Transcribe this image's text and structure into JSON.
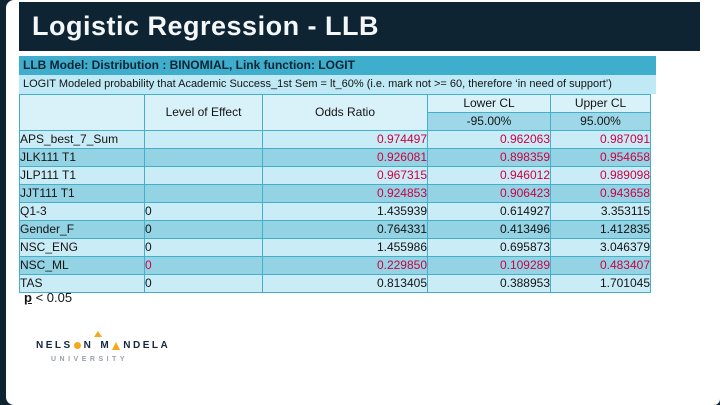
{
  "slide": {
    "title": "Logistic Regression - LLB"
  },
  "model_bar": {
    "text": "LLB Model: Distribution : BINOMIAL, Link function: LOGIT"
  },
  "subtitle_bar": {
    "text": "LOGIT Modeled probability that Academic Success_1st Sem = lt_60% (i.e. mark not >= 60, therefore ‘in need of support’)"
  },
  "table": {
    "headers": {
      "effect": "Level of Effect",
      "odds_ratio": "Odds Ratio",
      "lower_cl": "Lower CL",
      "lower_cl_sub": "-95.00%",
      "upper_cl": "Upper CL",
      "upper_cl_sub": "95.00%"
    },
    "rows": [
      {
        "label": "APS_best_7_Sum",
        "level": "",
        "odds": "0.974497",
        "lower": "0.962063",
        "upper": "0.987091",
        "significant": true
      },
      {
        "label": "JLK111 T1",
        "level": "",
        "odds": "0.926081",
        "lower": "0.898359",
        "upper": "0.954658",
        "significant": true
      },
      {
        "label": "JLP111 T1",
        "level": "",
        "odds": "0.967315",
        "lower": "0.946012",
        "upper": "0.989098",
        "significant": true
      },
      {
        "label": "JJT111 T1",
        "level": "",
        "odds": "0.924853",
        "lower": "0.906423",
        "upper": "0.943658",
        "significant": true
      },
      {
        "label": "Q1-3",
        "level": "0",
        "odds": "1.435939",
        "lower": "0.614927",
        "upper": "3.353115",
        "significant": false
      },
      {
        "label": "Gender_F",
        "level": "0",
        "odds": "0.764331",
        "lower": "0.413496",
        "upper": "1.412835",
        "significant": false
      },
      {
        "label": "NSC_ENG",
        "level": "0",
        "odds": "1.455986",
        "lower": "0.695873",
        "upper": "3.046379",
        "significant": false
      },
      {
        "label": "NSC_ML",
        "level": "0",
        "odds": "0.229850",
        "lower": "0.109289",
        "upper": "0.483407",
        "significant": true
      },
      {
        "label": "TAS",
        "level": "0",
        "odds": "0.813405",
        "lower": "0.388953",
        "upper": "1.701045",
        "significant": false
      }
    ]
  },
  "footnote": {
    "p_symbol": "p",
    "condition": " < 0.05"
  },
  "logo": {
    "line1_a": "NELS",
    "line1_b": "N",
    "line1_c": "M",
    "line1_d": "NDELA",
    "line2": "UNIVERSITY"
  },
  "colors": {
    "navy": "#0e2433",
    "teal_bar": "#3faecd",
    "light_bar": "#bfe9f4",
    "row_light": "#c9ecf7",
    "row_dark": "#94d3e4",
    "significant_red": "#cc0044",
    "logo_yellow": "#f6a81c"
  }
}
